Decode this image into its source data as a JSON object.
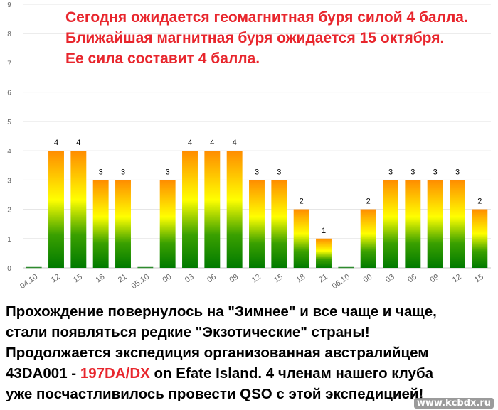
{
  "chart_data": {
    "type": "bar",
    "title": "",
    "xlabel": "",
    "ylabel": "",
    "ylim": [
      0,
      9
    ],
    "yticks": [
      0,
      1,
      2,
      3,
      4,
      5,
      6,
      7,
      8,
      9
    ],
    "grid": true,
    "legend": "none",
    "categories": [
      "04.10",
      "12",
      "15",
      "18",
      "21",
      "05.10",
      "00",
      "03",
      "06",
      "09",
      "12",
      "15",
      "18",
      "21",
      "06.10",
      "00",
      "03",
      "06",
      "09",
      "12",
      "15"
    ],
    "values": [
      0,
      4,
      4,
      3,
      3,
      0,
      3,
      4,
      4,
      4,
      3,
      3,
      2,
      1,
      0,
      2,
      3,
      3,
      3,
      3,
      2
    ],
    "data_labels": [
      "",
      "4",
      "4",
      "3",
      "3",
      "",
      "3",
      "4",
      "4",
      "4",
      "3",
      "3",
      "2",
      "1",
      "",
      "2",
      "3",
      "3",
      "3",
      "3",
      "2"
    ],
    "colors": {
      "high": "#ff8c00",
      "mid": "#ffff00",
      "low": "#008000",
      "grid": "#e6e6e6",
      "axis": "#c8c8c8",
      "tick_text": "#666666"
    }
  },
  "header": {
    "lines": [
      "Сегодня ожидается геомагнитная буря силой 4 балла.",
      "Ближайшая магнитная буря ожидается 15 октября.",
      "Ее сила составит 4 балла."
    ]
  },
  "caption": {
    "line1": "Прохождение повернулось на \"Зимнее\" и все чаще и чаще,",
    "line2": "стали появляться редкие \"Экзотические\" страны!",
    "line3": "Продолжается экспедиция организованная австралийцем",
    "line4_prefix": "43DA001 - ",
    "line4_callsign": "197DA/DX",
    "line4_suffix": " on Efate Island. 4 членам нашего клуба",
    "line5": "уже посчастливилось провести QSO с этой экспедицией!"
  },
  "watermark": "www.kcbdx.ru",
  "colors": {
    "red_text": "#e8262d"
  }
}
